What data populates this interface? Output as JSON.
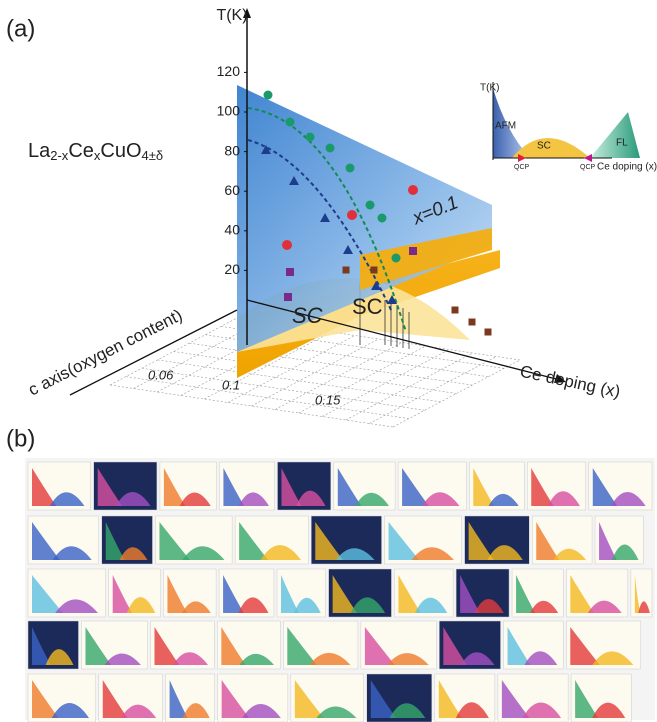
{
  "panel_a": {
    "label": "(a)",
    "t_axis": {
      "title": "T(K)",
      "ticks": [
        120,
        100,
        80,
        60,
        40,
        20
      ]
    },
    "formula": [
      "La",
      "2-x",
      "Ce",
      "x",
      "CuO",
      "4±δ"
    ],
    "plane_label": "x=0.1",
    "dome_labels": [
      "SC",
      "SC"
    ],
    "c_axis": {
      "title": "c axis(oxygen content)",
      "ticks": [
        0.06,
        0.1,
        0.15
      ]
    },
    "x_axis_title": "Ce doping (x)",
    "inset": {
      "y_title": "T(K)",
      "regions": [
        "AFM",
        "SC",
        "FL"
      ],
      "markers": [
        "QCP",
        "QCP"
      ],
      "x_title": "Ce doping (x)"
    }
  },
  "panel_b": {
    "label": "(b)"
  }
}
